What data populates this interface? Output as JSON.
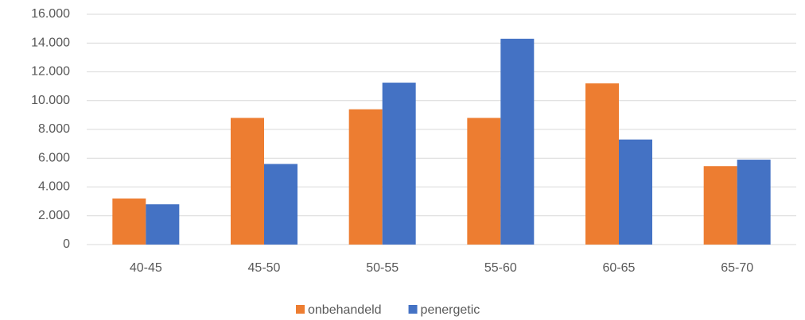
{
  "chart_data": {
    "type": "bar",
    "categories": [
      "40-45",
      "45-50",
      "50-55",
      "55-60",
      "60-65",
      "65-70"
    ],
    "series": [
      {
        "name": "onbehandeld",
        "color": "#ed7d31",
        "values": [
          3200,
          8800,
          9400,
          8800,
          11200,
          5450
        ]
      },
      {
        "name": "penergetic",
        "color": "#4472c4",
        "values": [
          2800,
          5600,
          11250,
          14300,
          7300,
          5900
        ]
      }
    ],
    "ylim": [
      0,
      16000
    ],
    "yticks": [
      0,
      {
        "value": 2000,
        "label": "2.000"
      },
      {
        "value": 4000,
        "label": "4.000"
      },
      {
        "value": 6000,
        "label": "6.000"
      },
      {
        "value": 8000,
        "label": "8.000"
      },
      {
        "value": 10000,
        "label": "10.000"
      },
      {
        "value": 12000,
        "label": "12.000"
      },
      {
        "value": 14000,
        "label": "14.000"
      },
      {
        "value": 16000,
        "label": "16.000"
      }
    ],
    "grid": true,
    "legend": "bottom"
  }
}
